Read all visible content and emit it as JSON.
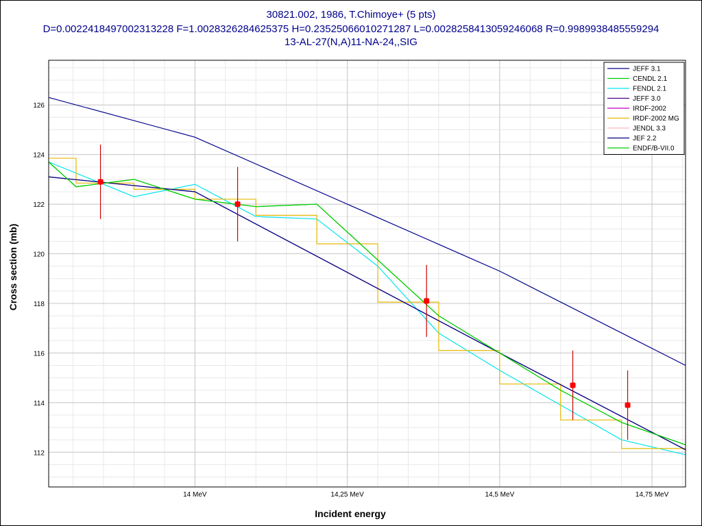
{
  "header": {
    "line1": "30821.002, 1986, T.Chimoye+ (5 pts)",
    "line2": "D=0.0022418497002313228 F=1.0028326284625375 H=0.23525066010271287 L=0.0028258413059246068 R=0.9989938485559294",
    "line3": "13-AL-27(N,A)11-NA-24,,SIG"
  },
  "colors": {
    "title": "#00008b",
    "grid_major": "#c8c8c8",
    "grid_minor": "#e8e8e8",
    "exp_point": "#ff0000",
    "exp_errorbar": "#cc0000"
  },
  "chart_data": {
    "type": "line",
    "xlabel": "Incident energy",
    "ylabel": "Cross section (mb)",
    "xlim": [
      13.76,
      14.805
    ],
    "ylim": [
      110.6,
      127.8
    ],
    "grid": true,
    "legend_position": "top-right",
    "x_ticks": [
      {
        "value": 14.0,
        "label": "14 MeV"
      },
      {
        "value": 14.25,
        "label": "14,25 MeV"
      },
      {
        "value": 14.5,
        "label": "14,5 MeV"
      },
      {
        "value": 14.75,
        "label": "14,75 MeV"
      }
    ],
    "y_ticks": [
      {
        "value": 112,
        "label": "112"
      },
      {
        "value": 114,
        "label": "114"
      },
      {
        "value": 116,
        "label": "116"
      },
      {
        "value": 118,
        "label": "118"
      },
      {
        "value": 120,
        "label": "120"
      },
      {
        "value": 122,
        "label": "122"
      },
      {
        "value": 124,
        "label": "124"
      },
      {
        "value": 126,
        "label": "126"
      }
    ],
    "series": [
      {
        "name": "JEFF 3.1",
        "color": "#00008b",
        "step": false,
        "points": [
          [
            13.76,
            126.3
          ],
          [
            14.0,
            124.7
          ],
          [
            14.5,
            119.3
          ],
          [
            14.805,
            115.5
          ]
        ]
      },
      {
        "name": "CENDL 2.1",
        "color": "#00cc00",
        "step": false,
        "points": [
          [
            13.76,
            123.7
          ],
          [
            13.805,
            122.7
          ],
          [
            13.9,
            123.0
          ],
          [
            14.0,
            122.2
          ],
          [
            14.1,
            121.9
          ],
          [
            14.2,
            122.0
          ],
          [
            14.4,
            117.5
          ],
          [
            14.5,
            116.0
          ],
          [
            14.6,
            114.5
          ],
          [
            14.7,
            113.2
          ],
          [
            14.805,
            112.3
          ]
        ]
      },
      {
        "name": "FENDL 2.1",
        "color": "#00e5ee",
        "step": false,
        "points": [
          [
            13.76,
            123.7
          ],
          [
            13.9,
            122.3
          ],
          [
            14.0,
            122.8
          ],
          [
            14.1,
            121.5
          ],
          [
            14.2,
            121.4
          ],
          [
            14.3,
            119.5
          ],
          [
            14.4,
            116.8
          ],
          [
            14.5,
            115.3
          ],
          [
            14.6,
            113.9
          ],
          [
            14.7,
            112.5
          ],
          [
            14.805,
            111.9
          ]
        ]
      },
      {
        "name": "JEFF 3.0",
        "color": "#4b0082",
        "step": false,
        "points": [
          [
            13.76,
            123.1
          ],
          [
            14.0,
            122.5
          ],
          [
            14.5,
            116.0
          ],
          [
            14.805,
            112.1
          ]
        ]
      },
      {
        "name": "IRDF-2002",
        "color": "#c000c0",
        "step": false,
        "points": []
      },
      {
        "name": "IRDF-2002 MG",
        "color": "#e6b800",
        "step": true,
        "points": [
          [
            13.76,
            123.85
          ],
          [
            13.805,
            122.85
          ],
          [
            13.9,
            122.6
          ],
          [
            14.0,
            122.2
          ],
          [
            14.1,
            121.55
          ],
          [
            14.2,
            120.4
          ],
          [
            14.3,
            118.05
          ],
          [
            14.4,
            116.1
          ],
          [
            14.5,
            114.75
          ],
          [
            14.6,
            113.3
          ],
          [
            14.7,
            112.15
          ],
          [
            14.805,
            112.15
          ]
        ]
      },
      {
        "name": "JENDL 3.3",
        "color": "#ffb6c1",
        "step": false,
        "points": []
      },
      {
        "name": "JEF 2.2",
        "color": "#000080",
        "step": false,
        "points": [
          [
            13.76,
            123.1
          ],
          [
            14.0,
            122.5
          ],
          [
            14.5,
            116.0
          ],
          [
            14.805,
            112.1
          ]
        ]
      },
      {
        "name": "ENDF/B-VII.0",
        "color": "#00cc00",
        "step": false,
        "points": [
          [
            13.76,
            123.7
          ],
          [
            13.805,
            122.7
          ],
          [
            13.9,
            123.0
          ],
          [
            14.0,
            122.2
          ],
          [
            14.1,
            121.9
          ],
          [
            14.2,
            122.0
          ],
          [
            14.4,
            117.5
          ],
          [
            14.5,
            116.0
          ],
          [
            14.6,
            114.5
          ],
          [
            14.7,
            113.2
          ],
          [
            14.805,
            112.3
          ]
        ]
      }
    ],
    "experimental": {
      "points": [
        {
          "x": 13.845,
          "y": 122.9,
          "err": 1.5
        },
        {
          "x": 14.07,
          "y": 122.0,
          "err": 1.5
        },
        {
          "x": 14.38,
          "y": 118.1,
          "err": 1.45
        },
        {
          "x": 14.62,
          "y": 114.7,
          "err": 1.4
        },
        {
          "x": 14.71,
          "y": 113.9,
          "err": 1.4
        }
      ]
    }
  }
}
